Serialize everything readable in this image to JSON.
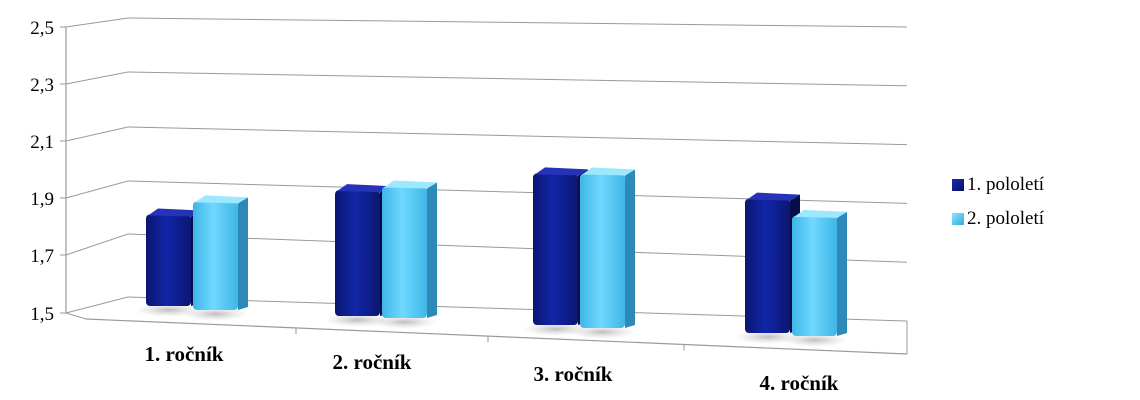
{
  "chart_data": {
    "type": "bar",
    "title": "",
    "categories": [
      "1. ročník",
      "2. ročník",
      "3. ročník",
      "4. ročník"
    ],
    "series": [
      {
        "name": "1. pololetí",
        "values": [
          1.82,
          1.94,
          2.03,
          1.97
        ],
        "color": "#0a1a8f"
      },
      {
        "name": "2. pololetí",
        "values": [
          1.88,
          1.96,
          2.04,
          1.92
        ],
        "color": "#55ccf5"
      }
    ],
    "ylim": [
      1.5,
      2.5
    ],
    "yticks": [
      "1,5",
      "1,7",
      "1,9",
      "2,1",
      "2,3",
      "2,5"
    ],
    "grid": true,
    "legend_position": "right",
    "style": "3d-perspective"
  }
}
